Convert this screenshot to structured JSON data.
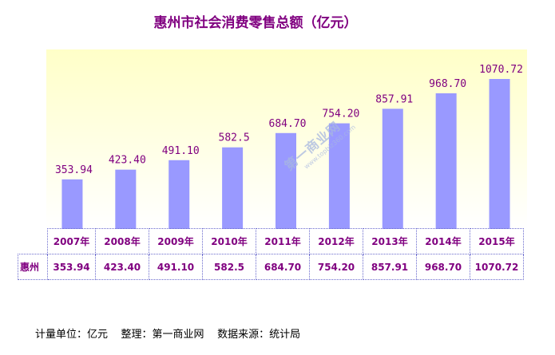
{
  "chart_data": {
    "type": "bar",
    "title": "惠州市社会消费零售总额（亿元）",
    "categories": [
      "2007年",
      "2008年",
      "2009年",
      "2010年",
      "2011年",
      "2012年",
      "2013年",
      "2014年",
      "2015年"
    ],
    "series": [
      {
        "name": "惠州",
        "values": [
          353.94,
          423.4,
          491.1,
          582.5,
          684.7,
          754.2,
          857.91,
          968.7,
          1070.72
        ],
        "labels": [
          "353.94",
          "423.40",
          "491.10",
          "582.5",
          "684.70",
          "754.20",
          "857.91",
          "968.70",
          "1070.72"
        ],
        "table_labels": [
          "353.94",
          "423.40",
          "491.10",
          "582.5",
          "684.70",
          "754.20",
          "857.91",
          "968.70",
          "1070.72"
        ]
      }
    ],
    "ylim": [
      0,
      1200
    ],
    "grid": false,
    "legend": "none",
    "colors": {
      "bar": "#9999ff",
      "text": "#800080",
      "plot_gradient_top": "#ffffc8",
      "plot_gradient_bottom": "#ffffff"
    }
  },
  "footer": {
    "unit": "计量单位：亿元",
    "compiled_by": "整理：第一商业网",
    "source": "数据来源：统计局"
  },
  "watermark": {
    "main": "第一商业网",
    "sub": "www.topbiz360.com"
  }
}
